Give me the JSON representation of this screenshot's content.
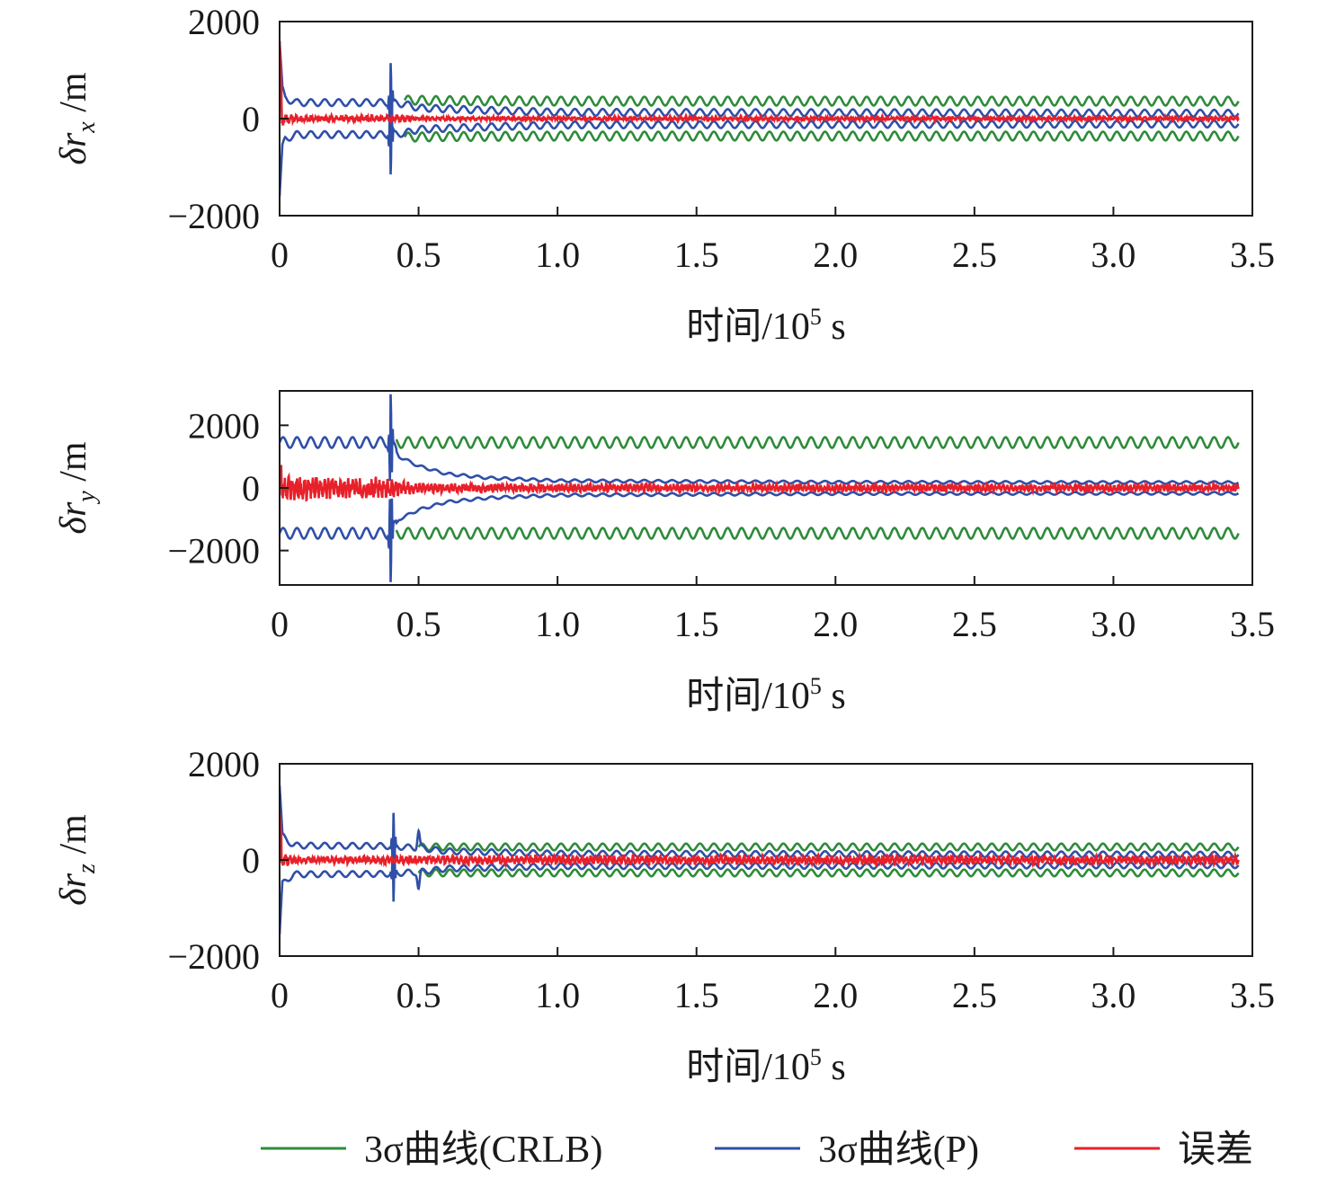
{
  "chart_data": [
    {
      "type": "line",
      "ylabel": "δr_x /m",
      "ylabel_parts": {
        "symbol": "δr",
        "sub": "x",
        "unit": "/m"
      },
      "xlabel": "时间/10⁵ s",
      "xlabel_parts": {
        "main": "时间/10",
        "sup": "5",
        "unit": " s"
      },
      "xlim": [
        0,
        3.5
      ],
      "ylim": [
        -2000,
        2000
      ],
      "xticks": [
        "0",
        "0.5",
        "1.0",
        "1.5",
        "2.0",
        "2.5",
        "3.0",
        "3.5"
      ],
      "yticks": [
        "2000",
        "0",
        "−2000"
      ],
      "grid": false,
      "series": [
        {
          "name": "3σ曲线(CRLB)",
          "color": "#2e8b3a",
          "role": "crlb",
          "envelope": {
            "x": [
              0.48,
              0.6,
              1.0,
              2.0,
              3.45
            ],
            "y": [
              380,
              370,
              360,
              360,
              360
            ]
          },
          "start": 0.45,
          "cycles_per_unit": 20,
          "osc_amplitude": 90
        },
        {
          "name": "3σ曲线(P)",
          "color": "#2f4fa8",
          "role": "p",
          "envelope": {
            "x": [
              0,
              0.01,
              0.02,
              0.06,
              0.4,
              0.45,
              0.5,
              0.7,
              1.0,
              3.45
            ],
            "y": [
              1600,
              600,
              420,
              330,
              330,
              300,
              220,
              180,
              130,
              110
            ]
          },
          "spike": {
            "x": 0.4,
            "value": 1200
          },
          "start": 0,
          "cycles_per_unit": 20,
          "osc_amplitude": 70
        },
        {
          "name": "误差",
          "color": "#e8202a",
          "role": "error",
          "envelope": {
            "x": [
              0,
              0.01,
              0.05,
              0.45,
              0.5,
              3.45
            ],
            "y": [
              1600,
              250,
              120,
              110,
              60,
              60
            ]
          },
          "start": 0,
          "cycles_per_unit": 55,
          "osc_amplitude": 1,
          "seed": 11
        }
      ]
    },
    {
      "type": "line",
      "ylabel": "δr_y /m",
      "ylabel_parts": {
        "symbol": "δr",
        "sub": "y",
        "unit": "/m"
      },
      "xlabel": "时间/10⁵ s",
      "xlabel_parts": {
        "main": "时间/10",
        "sup": "5",
        "unit": " s"
      },
      "xlim": [
        0,
        3.5
      ],
      "ylim": [
        -3100,
        3100
      ],
      "xticks": [
        "0",
        "0.5",
        "1.0",
        "1.5",
        "2.0",
        "2.5",
        "3.0",
        "3.5"
      ],
      "yticks": [
        "2000",
        "0",
        "−2000"
      ],
      "grid": false,
      "series": [
        {
          "name": "3σ曲线(CRLB)",
          "color": "#2e8b3a",
          "role": "crlb",
          "envelope": {
            "x": [
              0.42,
              1.0,
              2.0,
              3.45
            ],
            "y": [
              1450,
              1450,
              1450,
              1450
            ]
          },
          "start": 0.42,
          "cycles_per_unit": 20,
          "osc_amplitude": 170
        },
        {
          "name": "3σ曲线(P)",
          "color": "#2f4fa8",
          "role": "p",
          "envelope": {
            "x": [
              0,
              0.4,
              0.43,
              0.5,
              0.6,
              0.75,
              1.0,
              2.0,
              3.45
            ],
            "y": [
              1450,
              1450,
              1000,
              700,
              450,
              320,
              230,
              180,
              170
            ]
          },
          "spike": {
            "x": 0.4,
            "value": 3100
          },
          "start": 0,
          "cycles_per_unit": 20,
          "osc_amplitude": 170,
          "osc_end": 0.42
        },
        {
          "name": "误差",
          "color": "#e8202a",
          "role": "error",
          "envelope": {
            "x": [
              0,
              0.4,
              0.45,
              0.6,
              1.0,
              3.45
            ],
            "y": [
              700,
              550,
              350,
              250,
              230,
              200
            ]
          },
          "start": 0,
          "cycles_per_unit": 70,
          "osc_amplitude": 1,
          "seed": 23
        }
      ]
    },
    {
      "type": "line",
      "ylabel": "δr_z /m",
      "ylabel_parts": {
        "symbol": "δr",
        "sub": "z",
        "unit": "/m"
      },
      "xlabel": "时间/10⁵ s",
      "xlabel_parts": {
        "main": "时间/10",
        "sup": "5",
        "unit": " s"
      },
      "xlim": [
        0,
        3.5
      ],
      "ylim": [
        -2000,
        2000
      ],
      "xticks": [
        "0",
        "0.5",
        "1.0",
        "1.5",
        "2.0",
        "2.5",
        "3.0",
        "3.5"
      ],
      "yticks": [
        "2000",
        "0",
        "−2000"
      ],
      "grid": false,
      "series": [
        {
          "name": "3σ曲线(CRLB)",
          "color": "#2e8b3a",
          "role": "crlb",
          "envelope": {
            "x": [
              0.5,
              1.0,
              2.0,
              3.45
            ],
            "y": [
              270,
              270,
              270,
              270
            ]
          },
          "start": 0.5,
          "cycles_per_unit": 20,
          "osc_amplitude": 70
        },
        {
          "name": "3σ曲线(P)",
          "color": "#2f4fa8",
          "role": "p",
          "envelope": {
            "x": [
              0,
              0.01,
              0.05,
              0.38,
              0.5,
              0.6,
              1.0,
              3.45
            ],
            "y": [
              1550,
              500,
              300,
              290,
              250,
              180,
              130,
              110
            ]
          },
          "spike": {
            "x": 0.41,
            "value": 950
          },
          "spike2": {
            "x": 0.5,
            "value": 600
          },
          "start": 0,
          "cycles_per_unit": 20,
          "osc_amplitude": 60
        },
        {
          "name": "误差",
          "color": "#e8202a",
          "role": "error",
          "envelope": {
            "x": [
              0,
              0.01,
              0.05,
              0.5,
              1.0,
              3.45
            ],
            "y": [
              1000,
              300,
              120,
              150,
              180,
              150
            ]
          },
          "start": 0,
          "cycles_per_unit": 60,
          "osc_amplitude": 1,
          "seed": 37
        }
      ]
    }
  ],
  "legend": {
    "placement": "bottom",
    "items": [
      {
        "label": "3σ曲线(CRLB)",
        "color": "#2e8b3a"
      },
      {
        "label": "3σ曲线(P)",
        "color": "#2f4fa8"
      },
      {
        "label": "误差",
        "color": "#e8202a"
      }
    ]
  }
}
